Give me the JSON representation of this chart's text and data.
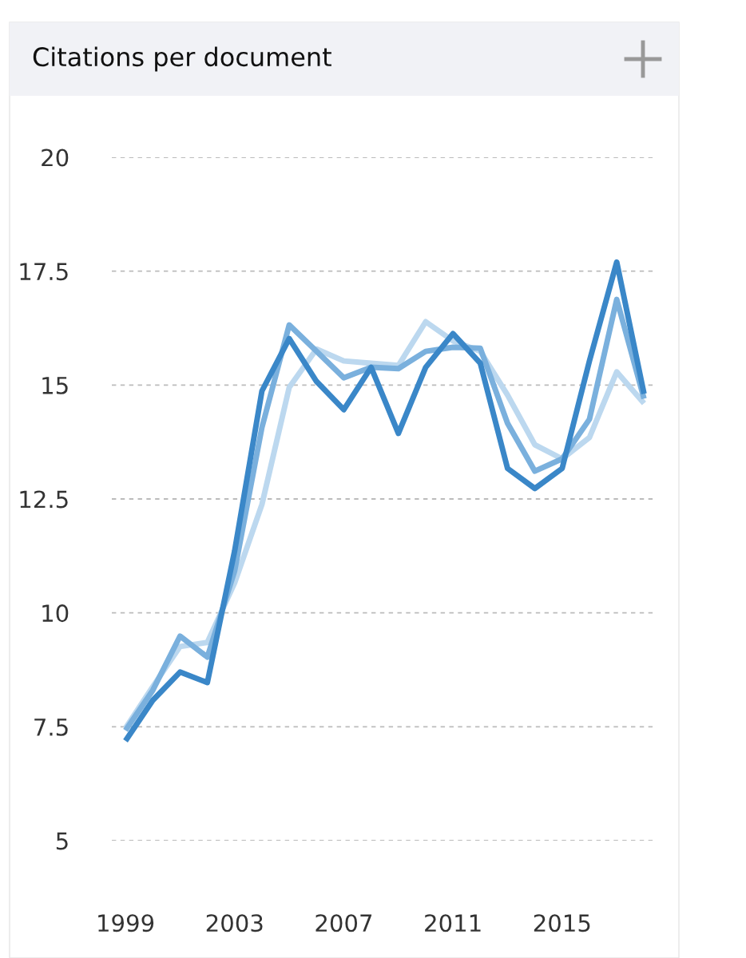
{
  "chart_data": {
    "type": "line",
    "title": "Citations per document",
    "x": [
      1999,
      2000,
      2001,
      2002,
      2003,
      2004,
      2005,
      2006,
      2007,
      2008,
      2009,
      2010,
      2011,
      2012,
      2013,
      2014,
      2015,
      2016,
      2017,
      2018
    ],
    "series": [
      {
        "color": "#bcd8ef",
        "values": [
          7.47,
          8.38,
          9.26,
          9.35,
          10.66,
          12.38,
          14.95,
          15.79,
          15.53,
          15.48,
          15.43,
          16.39,
          15.97,
          15.74,
          14.78,
          13.69,
          13.38,
          13.85,
          15.29,
          14.6
        ]
      },
      {
        "color": "#7ab0dd",
        "values": [
          7.42,
          8.3,
          9.49,
          9.03,
          10.92,
          14.07,
          16.32,
          15.74,
          15.16,
          15.39,
          15.36,
          15.74,
          15.83,
          15.81,
          14.16,
          13.11,
          13.38,
          14.25,
          16.88,
          14.7
        ]
      },
      {
        "color": "#3a87c8",
        "values": [
          7.19,
          8.08,
          8.7,
          8.47,
          11.36,
          14.87,
          16.02,
          15.08,
          14.46,
          15.39,
          13.94,
          15.39,
          16.13,
          15.48,
          13.17,
          12.73,
          13.17,
          15.53,
          17.7,
          14.81
        ]
      }
    ],
    "xlim": [
      1998.5,
      2018.4
    ],
    "xticks": [
      1999,
      2003,
      2007,
      2011,
      2015
    ],
    "ylim": [
      5,
      20
    ],
    "yticks": [
      5,
      7.5,
      10,
      12.5,
      15,
      17.5,
      20
    ],
    "grid": "y",
    "line_style": "solid",
    "marker": "none"
  }
}
